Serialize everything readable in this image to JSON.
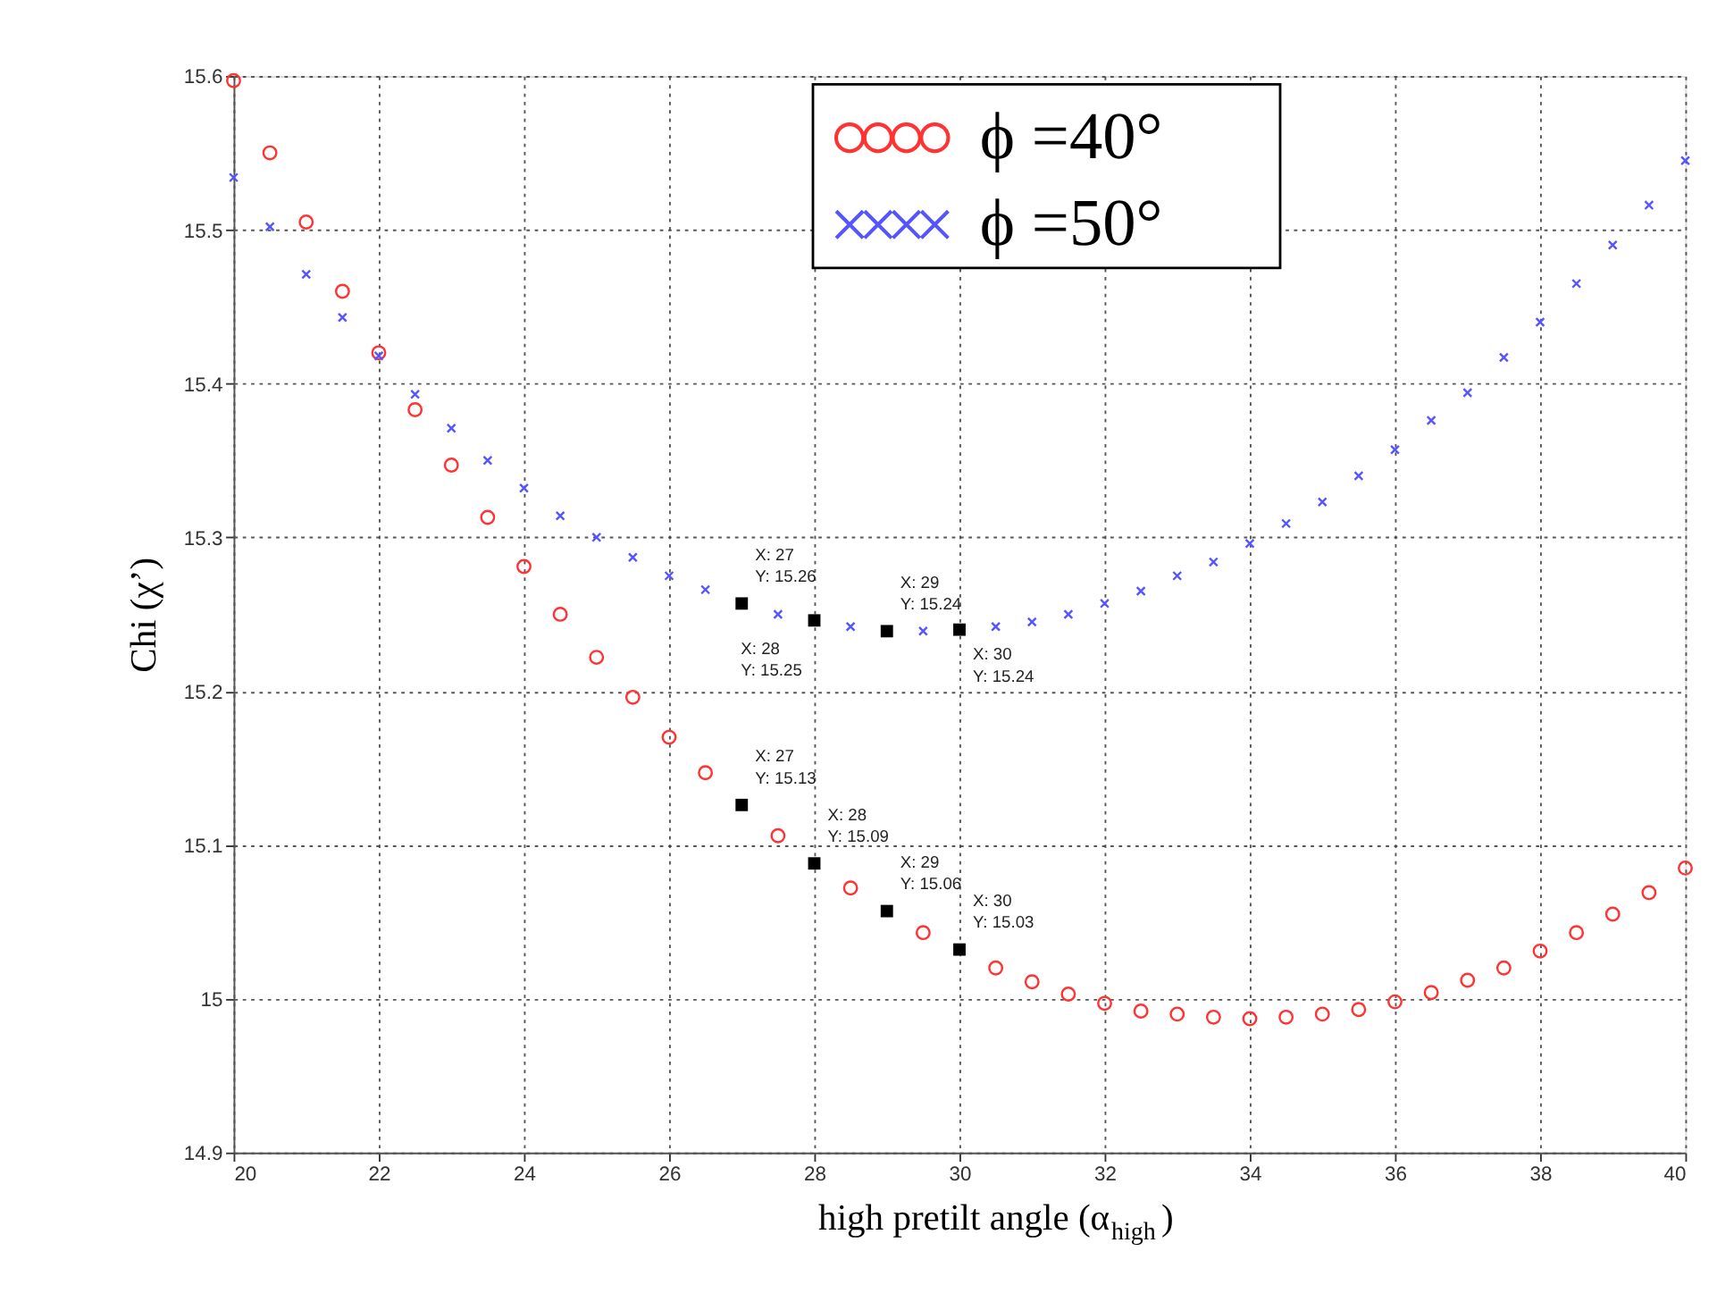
{
  "chart_data": {
    "type": "scatter",
    "xlabel": "high pretilt angle (α$_{high}$)",
    "ylabel": "Chi (χ’)",
    "xlim": [
      20,
      40
    ],
    "xticks": [
      20,
      22,
      24,
      26,
      28,
      30,
      32,
      34,
      36,
      38,
      40
    ],
    "ylim": [
      14.9,
      15.6
    ],
    "yticks": [
      14.9,
      15,
      15.1,
      15.2,
      15.3,
      15.4,
      15.5,
      15.6
    ],
    "grid": true,
    "legend": "top",
    "series": [
      {
        "name": "ϕ =40°",
        "color": "#ff3333",
        "marker": "circle",
        "x": [
          20,
          20.5,
          21,
          21.5,
          22,
          22.5,
          23,
          23.5,
          24,
          24.5,
          25,
          25.5,
          26,
          26.5,
          27,
          27.5,
          28,
          28.5,
          29,
          29.5,
          30,
          30.5,
          31,
          31.5,
          32,
          32.5,
          33,
          33.5,
          34,
          34.5,
          35,
          35.5,
          36,
          36.5,
          37,
          37.5,
          38,
          38.5,
          39,
          39.5,
          40
        ],
        "values": [
          15.597,
          15.55,
          15.505,
          15.46,
          15.42,
          15.383,
          15.347,
          15.313,
          15.281,
          15.25,
          15.222,
          15.196,
          15.17,
          15.147,
          null,
          15.106,
          null,
          15.072,
          null,
          15.043,
          null,
          15.02,
          15.011,
          15.003,
          14.997,
          14.992,
          14.99,
          14.988,
          14.987,
          14.988,
          14.99,
          14.993,
          14.998,
          15.004,
          15.012,
          15.02,
          15.031,
          15.043,
          15.055,
          15.069,
          15.085
        ]
      },
      {
        "name": "ϕ =50°",
        "color": "#5555ff",
        "marker": "cross",
        "x": [
          20,
          20.5,
          21,
          21.5,
          22,
          22.5,
          23,
          23.5,
          24,
          24.5,
          25,
          25.5,
          26,
          26.5,
          27,
          27.5,
          28,
          28.5,
          29,
          29.5,
          30,
          30.5,
          31,
          31.5,
          32,
          32.5,
          33,
          33.5,
          34,
          34.5,
          35,
          35.5,
          36,
          36.5,
          37,
          37.5,
          38,
          38.5,
          39,
          39.5,
          40
        ],
        "values": [
          15.534,
          15.502,
          15.471,
          15.443,
          15.418,
          15.393,
          15.371,
          15.35,
          15.332,
          15.314,
          15.3,
          15.287,
          15.275,
          15.266,
          null,
          15.25,
          null,
          15.242,
          null,
          15.239,
          null,
          15.242,
          15.245,
          15.25,
          15.257,
          15.265,
          15.275,
          15.284,
          15.296,
          15.309,
          15.323,
          15.34,
          15.357,
          15.376,
          15.394,
          15.417,
          15.44,
          15.465,
          15.49,
          15.516,
          15.545
        ]
      },
      {
        "color": "#000000",
        "marker": "square",
        "x": [
          27,
          28,
          29,
          30,
          27,
          28,
          29,
          30
        ],
        "values": [
          15.257,
          15.246,
          15.239,
          15.24,
          15.126,
          15.088,
          15.057,
          15.032
        ]
      }
    ],
    "annotations": [
      {
        "text": "X: 27\nY: 15.26",
        "x": 27,
        "y": 15.257
      },
      {
        "text": "X: 28\nY: 15.25",
        "x": 28,
        "y": 15.246
      },
      {
        "text": "X: 29\nY: 15.24",
        "x": 29,
        "y": 15.239
      },
      {
        "text": "X: 30\nY: 15.24",
        "x": 30,
        "y": 15.24
      },
      {
        "text": "X: 27\nY: 15.13",
        "x": 27,
        "y": 15.126
      },
      {
        "text": "X: 28\nY: 15.09",
        "x": 28,
        "y": 15.088
      },
      {
        "text": "X: 29\nY: 15.06",
        "x": 29,
        "y": 15.057
      },
      {
        "text": "X: 30\nY: 15.03",
        "x": 30,
        "y": 15.032
      }
    ]
  }
}
